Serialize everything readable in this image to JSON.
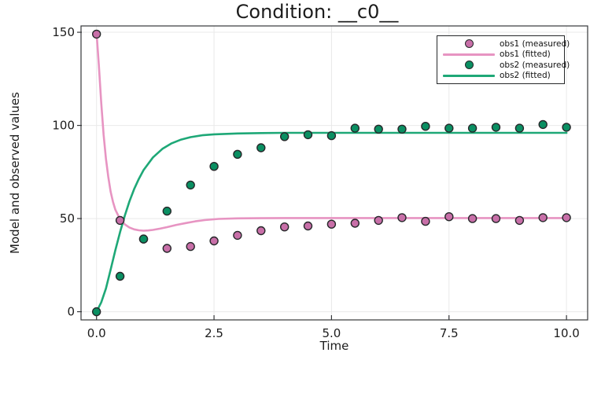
{
  "figure": {
    "background": "#ffffff"
  },
  "chart_data": {
    "type": "line",
    "title": "Condition: __c0__",
    "xlabel": "Time",
    "ylabel": "Model and observed values",
    "xlim": [
      -0.33,
      10.45
    ],
    "ylim": [
      -4.4,
      153.4
    ],
    "grid": true,
    "legend_position": "top-right",
    "frame_color": "#35373a",
    "grid_color": "#e9e9e9",
    "xticks": {
      "values": [
        0,
        2.5,
        5,
        7.5,
        10
      ],
      "labels": [
        "0.0",
        "2.5",
        "5.0",
        "7.5",
        "10.0"
      ]
    },
    "yticks": {
      "values": [
        0,
        50,
        100,
        150
      ],
      "labels": [
        "0",
        "50",
        "100",
        "150"
      ]
    },
    "series": [
      {
        "name": "obs1 (fitted)",
        "kind": "line",
        "color": "#e794c2",
        "width": 2.6,
        "points": [
          [
            0,
            150
          ],
          [
            0.05,
            132
          ],
          [
            0.1,
            112
          ],
          [
            0.15,
            95
          ],
          [
            0.2,
            82
          ],
          [
            0.25,
            72.5
          ],
          [
            0.3,
            64.5
          ],
          [
            0.35,
            59
          ],
          [
            0.4,
            54.8
          ],
          [
            0.5,
            49.6
          ],
          [
            0.6,
            46.9
          ],
          [
            0.7,
            45.2
          ],
          [
            0.8,
            44.2
          ],
          [
            0.9,
            43.7
          ],
          [
            1.0,
            43.5
          ],
          [
            1.1,
            43.6
          ],
          [
            1.2,
            43.9
          ],
          [
            1.35,
            44.6
          ],
          [
            1.5,
            45.4
          ],
          [
            1.7,
            46.6
          ],
          [
            1.9,
            47.6
          ],
          [
            2.1,
            48.5
          ],
          [
            2.3,
            49.2
          ],
          [
            2.6,
            49.8
          ],
          [
            3.0,
            50.1
          ],
          [
            3.5,
            50.2
          ],
          [
            4,
            50.3
          ],
          [
            5,
            50.3
          ],
          [
            6,
            50.3
          ],
          [
            7,
            50.3
          ],
          [
            8,
            50.3
          ],
          [
            9,
            50.3
          ],
          [
            10,
            50.3
          ]
        ]
      },
      {
        "name": "obs2 (fitted)",
        "kind": "line",
        "color": "#1ea877",
        "width": 2.6,
        "points": [
          [
            0,
            0
          ],
          [
            0.1,
            5
          ],
          [
            0.2,
            12.5
          ],
          [
            0.3,
            22.5
          ],
          [
            0.4,
            33
          ],
          [
            0.5,
            42.7
          ],
          [
            0.6,
            51.5
          ],
          [
            0.7,
            59.2
          ],
          [
            0.8,
            65.8
          ],
          [
            0.9,
            71.3
          ],
          [
            1.0,
            76
          ],
          [
            1.2,
            82.8
          ],
          [
            1.4,
            87.4
          ],
          [
            1.6,
            90.4
          ],
          [
            1.8,
            92.4
          ],
          [
            2.0,
            93.7
          ],
          [
            2.25,
            94.7
          ],
          [
            2.5,
            95.2
          ],
          [
            3.0,
            95.7
          ],
          [
            3.5,
            95.9
          ],
          [
            4,
            96
          ],
          [
            5,
            96
          ],
          [
            6,
            96
          ],
          [
            7,
            96
          ],
          [
            8,
            96
          ],
          [
            9,
            96
          ],
          [
            10,
            96
          ]
        ]
      },
      {
        "name": "obs1 (measured)",
        "kind": "scatter",
        "marker": "circle",
        "fill": "#c86fa8",
        "edge": "#26282a",
        "radius": 5,
        "x": [
          0,
          0.5,
          1,
          1.5,
          2,
          2.5,
          3,
          3.5,
          4,
          4.5,
          5,
          5.5,
          6,
          6.5,
          7,
          7.5,
          8,
          8.5,
          9,
          9.5,
          10
        ],
        "y": [
          149,
          49,
          39,
          34,
          35,
          38,
          41,
          43.5,
          45.5,
          46,
          47,
          47.5,
          49,
          50.5,
          48.5,
          51,
          50,
          50,
          49,
          50.5,
          50.5
        ]
      },
      {
        "name": "obs2 (measured)",
        "kind": "scatter",
        "marker": "circle",
        "fill": "#0a8f62",
        "edge": "#26282a",
        "radius": 5,
        "x": [
          0,
          0.5,
          1,
          1.5,
          2,
          2.5,
          3,
          3.5,
          4,
          4.5,
          5,
          5.5,
          6,
          6.5,
          7,
          7.5,
          8,
          8.5,
          9,
          9.5,
          10
        ],
        "y": [
          0,
          19,
          39,
          54,
          68,
          78,
          84.5,
          88,
          94,
          95,
          94.5,
          98.5,
          98,
          98,
          99.5,
          98.5,
          98.5,
          99,
          98.5,
          100.5,
          99
        ]
      }
    ],
    "legend": {
      "entries": [
        {
          "label": "obs1 (measured)",
          "swatch": "marker",
          "color": "#c86fa8"
        },
        {
          "label": "obs1 (fitted)",
          "swatch": "line",
          "color": "#e794c2"
        },
        {
          "label": "obs2 (measured)",
          "swatch": "marker",
          "color": "#0a8f62"
        },
        {
          "label": "obs2 (fitted)",
          "swatch": "line",
          "color": "#1ea877"
        }
      ]
    }
  }
}
